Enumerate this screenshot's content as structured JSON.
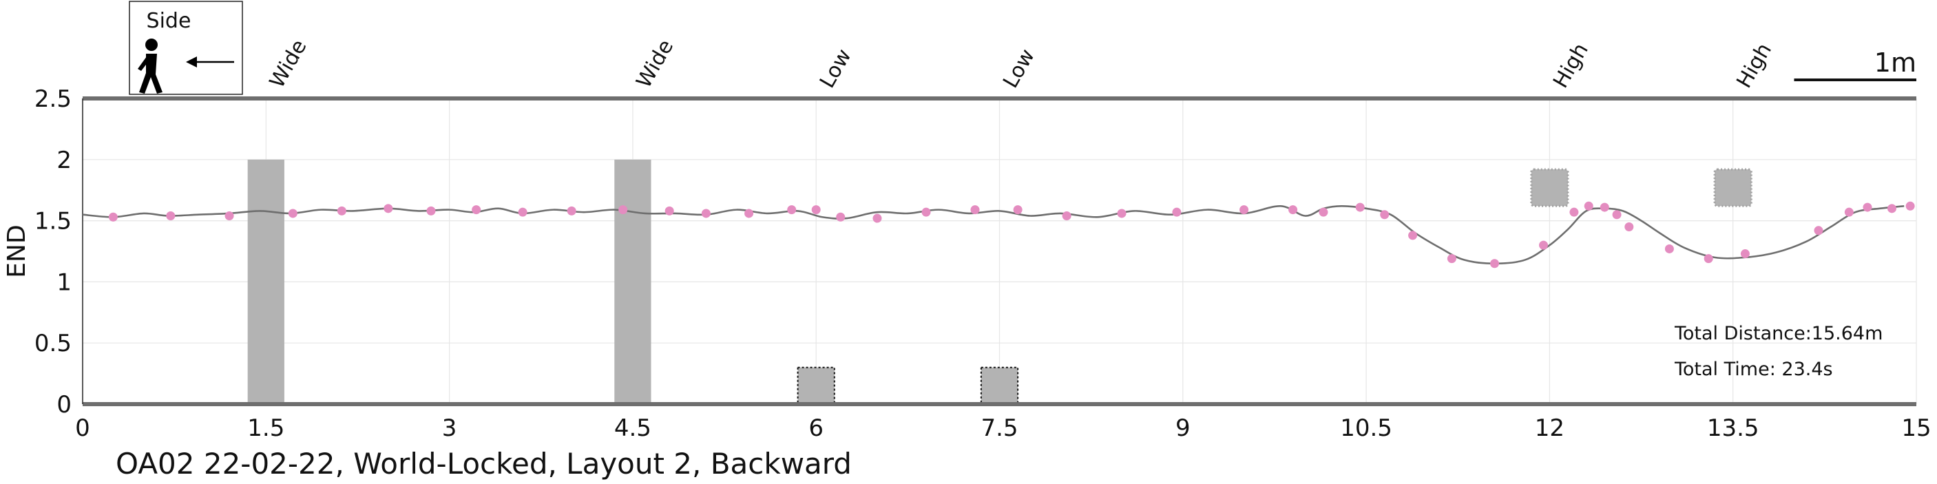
{
  "chart_data": {
    "type": "line",
    "title": "OA02 22-02-22, World-Locked, Layout 2, Backward",
    "ylabel": "END",
    "xlabel": "",
    "xlim": [
      0,
      15
    ],
    "ylim": [
      0,
      2.5
    ],
    "x_ticks": [
      0,
      1.5,
      3,
      4.5,
      6,
      7.5,
      9,
      10.5,
      12,
      13.5,
      15
    ],
    "x_tick_labels": [
      "0",
      "1.5",
      "3",
      "4.5",
      "6",
      "7.5",
      "9",
      "10.5",
      "12",
      "13.5",
      "15"
    ],
    "y_ticks": [
      0,
      0.5,
      1,
      1.5,
      2,
      2.5
    ],
    "y_tick_labels": [
      "0",
      "0.5",
      "1",
      "1.5",
      "2",
      "2.5"
    ],
    "grid": true,
    "line_color": "#6e6e6e",
    "marker_color": "#e48cc0",
    "obstacle_color": "#b3b3b3",
    "trajectory": {
      "x": [
        0,
        0.25,
        0.5,
        0.7,
        0.95,
        1.2,
        1.45,
        1.7,
        1.95,
        2.2,
        2.5,
        2.75,
        3.0,
        3.2,
        3.4,
        3.6,
        3.85,
        4.1,
        4.35,
        4.6,
        4.85,
        5.1,
        5.35,
        5.6,
        5.85,
        6.05,
        6.25,
        6.5,
        6.75,
        7.0,
        7.25,
        7.5,
        7.75,
        8.0,
        8.3,
        8.6,
        8.9,
        9.2,
        9.5,
        9.8,
        10.0,
        10.15,
        10.3,
        10.5,
        10.7,
        10.9,
        11.1,
        11.3,
        11.55,
        11.8,
        12.0,
        12.15,
        12.3,
        12.45,
        12.6,
        12.75,
        12.9,
        13.1,
        13.35,
        13.6,
        13.85,
        14.1,
        14.3,
        14.5,
        14.7,
        14.9
      ],
      "y": [
        1.55,
        1.53,
        1.56,
        1.54,
        1.55,
        1.56,
        1.58,
        1.56,
        1.59,
        1.58,
        1.6,
        1.58,
        1.59,
        1.57,
        1.6,
        1.56,
        1.59,
        1.57,
        1.59,
        1.56,
        1.56,
        1.55,
        1.59,
        1.56,
        1.58,
        1.53,
        1.52,
        1.57,
        1.56,
        1.59,
        1.56,
        1.58,
        1.54,
        1.56,
        1.53,
        1.58,
        1.55,
        1.59,
        1.56,
        1.62,
        1.54,
        1.6,
        1.62,
        1.6,
        1.55,
        1.4,
        1.28,
        1.18,
        1.15,
        1.18,
        1.3,
        1.43,
        1.58,
        1.6,
        1.58,
        1.5,
        1.4,
        1.28,
        1.2,
        1.2,
        1.24,
        1.33,
        1.45,
        1.57,
        1.6,
        1.62
      ]
    },
    "markers": {
      "x": [
        0.25,
        0.72,
        1.2,
        1.72,
        2.12,
        2.5,
        2.85,
        3.22,
        3.6,
        4.0,
        4.42,
        4.8,
        5.1,
        5.45,
        5.8,
        6.0,
        6.2,
        6.5,
        6.9,
        7.3,
        7.65,
        8.05,
        8.5,
        8.95,
        9.5,
        9.9,
        10.15,
        10.45,
        10.65,
        10.88,
        11.2,
        11.55,
        11.95,
        12.2,
        12.32,
        12.45,
        12.55,
        12.65,
        12.98,
        13.3,
        13.6,
        14.2,
        14.45,
        14.6,
        14.8,
        14.95
      ],
      "y": [
        1.53,
        1.54,
        1.54,
        1.56,
        1.58,
        1.6,
        1.58,
        1.59,
        1.57,
        1.58,
        1.59,
        1.58,
        1.56,
        1.56,
        1.59,
        1.59,
        1.53,
        1.52,
        1.57,
        1.59,
        1.59,
        1.54,
        1.56,
        1.57,
        1.59,
        1.59,
        1.57,
        1.61,
        1.55,
        1.38,
        1.19,
        1.15,
        1.3,
        1.57,
        1.62,
        1.61,
        1.55,
        1.45,
        1.27,
        1.19,
        1.23,
        1.42,
        1.57,
        1.61,
        1.6,
        1.62
      ]
    },
    "obstacles": [
      {
        "label": "Wide",
        "x": 1.5,
        "width": 0.3,
        "y0": 0,
        "y1": 2.0,
        "style": "solid"
      },
      {
        "label": "Wide",
        "x": 4.5,
        "width": 0.3,
        "y0": 0,
        "y1": 2.0,
        "style": "solid"
      },
      {
        "label": "Low",
        "x": 6.0,
        "width": 0.3,
        "y0": 0,
        "y1": 0.3,
        "style": "dotted"
      },
      {
        "label": "Low",
        "x": 7.5,
        "width": 0.3,
        "y0": 0,
        "y1": 0.3,
        "style": "dotted"
      },
      {
        "label": "High",
        "x": 12.0,
        "width": 0.3,
        "y0": 1.62,
        "y1": 1.92,
        "style": "fuzzy"
      },
      {
        "label": "High",
        "x": 13.5,
        "width": 0.3,
        "y0": 1.62,
        "y1": 1.92,
        "style": "fuzzy"
      }
    ],
    "scale_bar": {
      "label": "1m",
      "length": 1.0
    },
    "legend": {
      "label": "Side",
      "icon": "walking-person-icon",
      "arrow": "left-arrow-icon",
      "placement": "top-left"
    },
    "annotations": {
      "total_distance": "Total Distance:15.64m",
      "total_time": "Total Time: 23.4s"
    }
  }
}
